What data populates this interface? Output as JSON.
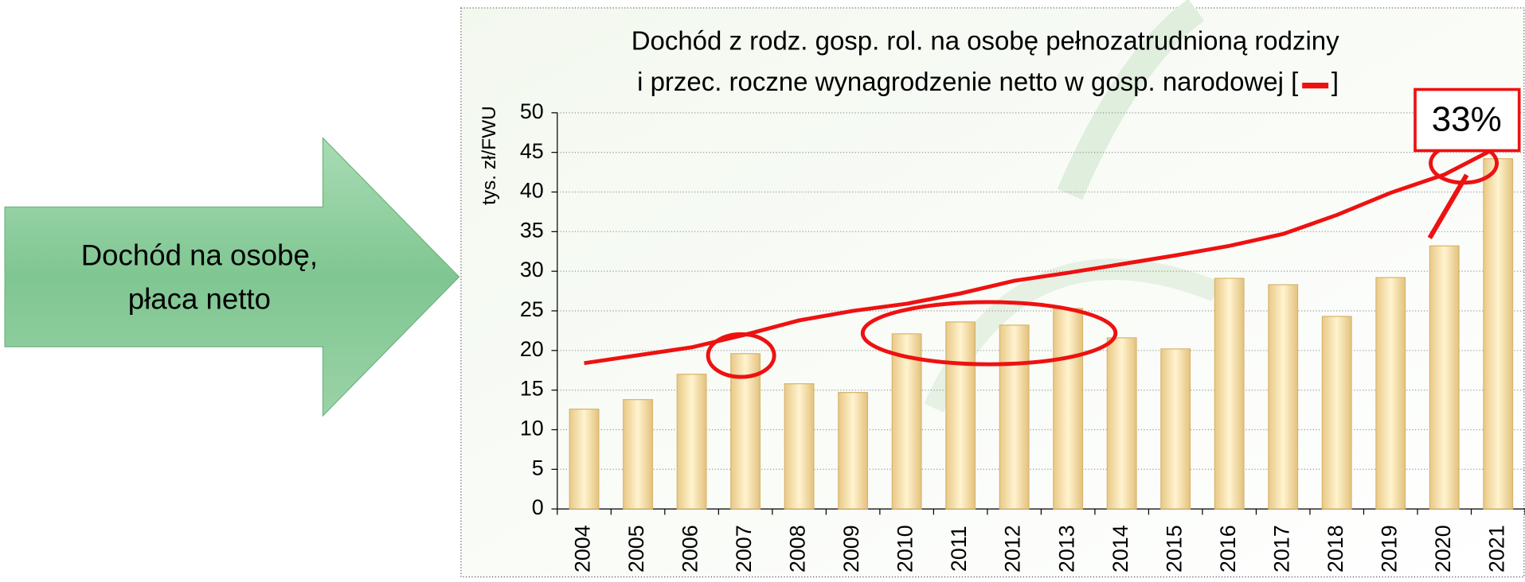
{
  "arrow_text": [
    "Dochód na osobę,",
    "płaca netto"
  ],
  "chart_data": {
    "type": "bar",
    "title": [
      "Dochód z rodz. gosp. rol. na osobę pełnozatrudnioną rodziny",
      "i przec. roczne wynagrodzenie netto w gosp. narodowej ["
    ],
    "title_end": "]",
    "y_label": "tys. zł/FWU",
    "annotation": "33%",
    "categories": [
      "2004",
      "2005",
      "2006",
      "2007",
      "2008",
      "2009",
      "2010",
      "2011",
      "2012",
      "2013",
      "2014",
      "2015",
      "2016",
      "2017",
      "2018",
      "2019",
      "2020",
      "2021"
    ],
    "series": [
      {
        "type": "bar",
        "color": "#f5dc9f",
        "values": [
          12.6,
          13.8,
          17.0,
          19.6,
          15.8,
          14.7,
          22.1,
          23.6,
          23.2,
          25.3,
          21.6,
          20.2,
          29.1,
          28.3,
          24.3,
          29.2,
          33.2,
          44.2
        ]
      },
      {
        "type": "line",
        "color": "#ee1111",
        "values": [
          18.4,
          19.4,
          20.4,
          22.0,
          23.8,
          25.0,
          25.9,
          27.2,
          28.8,
          29.8,
          30.9,
          32.0,
          33.2,
          34.7,
          37.1,
          39.9,
          42.2,
          45.7
        ]
      }
    ],
    "ylim": [
      0,
      50
    ],
    "yticks": [
      0,
      5,
      10,
      15,
      20,
      25,
      30,
      35,
      40,
      45,
      50
    ],
    "grid": true
  }
}
